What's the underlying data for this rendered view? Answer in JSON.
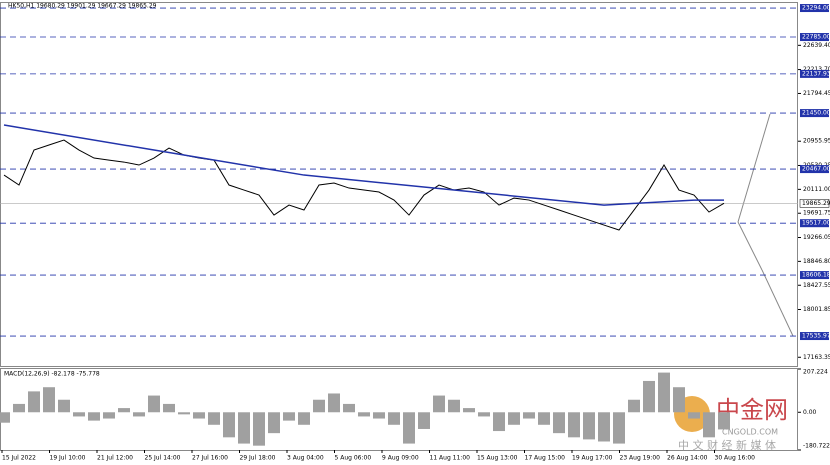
{
  "chart_data": [
    {
      "type": "line",
      "title": "HK50,H1 19680.29 19901.29 19667.29 19865.29",
      "series": [
        {
          "name": null,
          "color": "#000000",
          "values": [
            20362,
            20187,
            20801,
            20889,
            20977,
            20801,
            20661,
            20625,
            20590,
            20538,
            20661,
            20836,
            20713,
            20661,
            20625,
            20187,
            20099,
            20011,
            19660,
            19835,
            19748,
            20187,
            20222,
            20134,
            20099,
            20064,
            19923,
            19660,
            20011,
            20187,
            20099,
            20134,
            20064,
            19835,
            19958,
            19923,
            19835,
            19748,
            19660,
            19572,
            19484,
            19397,
            19748,
            20099,
            20538,
            20099,
            20011,
            19713,
            19865.29
          ]
        },
        {
          "name": null,
          "color": "#2233aa",
          "x": [
            0,
            10,
            20,
            30,
            40,
            46,
            48
          ],
          "values": [
            21240,
            20801,
            20362,
            20099,
            19835,
            19923,
            19923
          ]
        }
      ],
      "current": {
        "value": 19865.29,
        "label": "19865.29"
      },
      "levels": [
        {
          "value": 23294,
          "label": "23294.00"
        },
        {
          "value": 22785,
          "label": "22785.00"
        },
        {
          "value": 22137.93,
          "label": "22137.93"
        },
        {
          "value": 21450,
          "label": "21450.00"
        },
        {
          "value": 20467,
          "label": "20467.00"
        },
        {
          "value": 19517,
          "label": "19517.00"
        },
        {
          "value": 18606.18,
          "label": "18606.18"
        },
        {
          "value": 17535.97,
          "label": "17535.97"
        }
      ],
      "ylim": [
        17010,
        23400
      ],
      "yticks": [
        {
          "value": 22639.4,
          "label": "22639.40"
        },
        {
          "value": 22213.7,
          "label": "22213.70"
        },
        {
          "value": 21794.45,
          "label": "21794.45"
        },
        {
          "value": 20955.95,
          "label": "20955.95"
        },
        {
          "value": 20530.25,
          "label": "20530.25"
        },
        {
          "value": 20111,
          "label": "20111.00"
        },
        {
          "value": 19691.75,
          "label": "19691.75"
        },
        {
          "value": 19266.05,
          "label": "19266.05"
        },
        {
          "value": 18846.8,
          "label": "18846.80"
        },
        {
          "value": 18427.55,
          "label": "18427.55"
        },
        {
          "value": 18001.85,
          "label": "18001.85"
        },
        {
          "value": 17163.35,
          "label": "17163.35"
        }
      ],
      "xticks": [
        "15 Jul 2022",
        "19 Jul 10:00",
        "21 Jul 12:00",
        "25 Jul 14:00",
        "27 Jul 16:00",
        "29 Jul 18:00",
        "3 Aug 04:00",
        "5 Aug 06:00",
        "9 Aug 09:00",
        "11 Aug 11:00",
        "15 Aug 13:00",
        "17 Aug 15:00",
        "19 Aug 17:00",
        "23 Aug 19:00",
        "26 Aug 14:00",
        "30 Aug 16:00"
      ]
    },
    {
      "type": "bar",
      "title": "MACD(12,26,9) -82.178 -75.778",
      "color": "#a0a0a0",
      "values": [
        -50,
        40,
        100,
        120,
        60,
        -20,
        -40,
        -30,
        20,
        -20,
        80,
        40,
        -10,
        -30,
        -60,
        -120,
        -150,
        -160,
        -100,
        -40,
        -60,
        60,
        90,
        40,
        -20,
        -30,
        -60,
        -150,
        -80,
        80,
        60,
        20,
        -20,
        -90,
        -60,
        -30,
        -60,
        -100,
        -120,
        -130,
        -140,
        -150,
        60,
        150,
        190,
        120,
        -30,
        -120,
        -82.178
      ],
      "ylim": [
        -180.722,
        207.224
      ],
      "yticks": [
        {
          "value": 207.224,
          "label": "207.224"
        },
        {
          "value": 0,
          "label": "0.00"
        },
        {
          "value": -180.722,
          "label": "-180.722"
        }
      ]
    }
  ],
  "watermark": {
    "name": "中金网",
    "site": "CNGOLD.COM",
    "slogan": "中 文 财 经 新 媒 体"
  }
}
